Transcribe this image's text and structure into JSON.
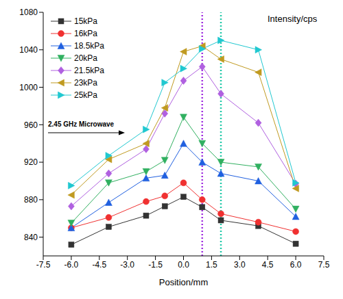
{
  "chart_data": {
    "type": "line",
    "x_label": "Position/mm",
    "y_label": "Intensity/cps",
    "annotations": [
      "2.45 GHz Microwave"
    ],
    "legend": "upper left",
    "x": [
      -6,
      -4,
      -2,
      -1,
      0,
      1,
      2,
      4,
      6
    ],
    "xlim": [
      -7.5,
      7.5
    ],
    "xticks": [
      -7.5,
      {
        "value": -6,
        "label": "-6.0"
      },
      -4.5,
      {
        "value": -3,
        "label": "-3.0"
      },
      -1.5,
      {
        "value": 0,
        "label": "0.0"
      },
      1.5,
      {
        "value": 3,
        "label": "3.0"
      },
      4.5,
      {
        "value": 6,
        "label": "6.0"
      },
      7.5
    ],
    "ylim": [
      820,
      1080
    ],
    "yticks": [
      840,
      880,
      920,
      960,
      1000,
      1040,
      1080
    ],
    "reference_lines": [
      {
        "x": 1,
        "color": "#a030e0",
        "line_style": "dotted"
      },
      {
        "x": 2,
        "color": "#20c8a8",
        "line_style": "dotted"
      }
    ],
    "series": [
      {
        "name": "15kPa",
        "color": "#333333",
        "marker": "square",
        "values": [
          832,
          851,
          863,
          873,
          883,
          872,
          858,
          852,
          833
        ]
      },
      {
        "name": "16kPa",
        "color": "#f03030",
        "marker": "circle",
        "values": [
          850,
          861,
          878,
          884,
          898,
          880,
          865,
          856,
          846
        ]
      },
      {
        "name": "18.5kPa",
        "color": "#2060e0",
        "marker": "triangle",
        "values": [
          850,
          877,
          903,
          906,
          940,
          920,
          908,
          900,
          862
        ]
      },
      {
        "name": "20kPa",
        "color": "#30b060",
        "marker": "triangle-down",
        "values": [
          855,
          898,
          910,
          922,
          968,
          940,
          920,
          915,
          870
        ]
      },
      {
        "name": "21.5kPa",
        "color": "#b060e0",
        "marker": "diamond",
        "values": [
          873,
          908,
          934,
          972,
          1007,
          1022,
          993,
          962,
          897
        ]
      },
      {
        "name": "23kPa",
        "color": "#c09a20",
        "marker": "triangle-left",
        "values": [
          885,
          923,
          940,
          978,
          1038,
          1044,
          1030,
          1016,
          892
        ]
      },
      {
        "name": "25kPa",
        "color": "#20c8d0",
        "marker": "triangle-right",
        "values": [
          895,
          927,
          955,
          1005,
          1020,
          1041,
          1050,
          1040,
          898
        ]
      }
    ]
  }
}
